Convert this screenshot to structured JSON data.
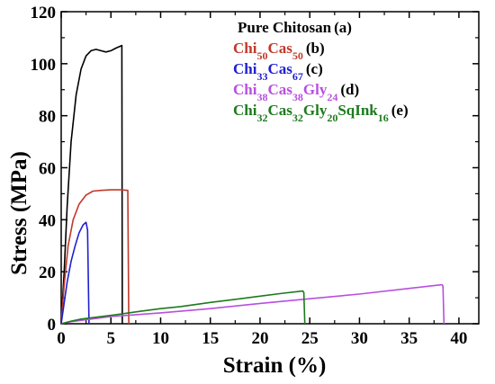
{
  "chart_data": {
    "type": "line",
    "xlabel": "Strain (%)",
    "ylabel": "Stress (MPa)",
    "xlim": [
      0,
      42
    ],
    "ylim": [
      0,
      120
    ],
    "xticks": [
      "0",
      "5",
      "10",
      "15",
      "20",
      "25",
      "30",
      "35",
      "40"
    ],
    "yticks": [
      "0",
      "20",
      "40",
      "60",
      "80",
      "100",
      "120"
    ],
    "grid": false,
    "legend_position": "top-right",
    "series": [
      {
        "name": "Pure Chitosan (a)",
        "color": "#000000",
        "legend_parts": [
          {
            "text": "Pure Chitosan",
            "sub": false
          }
        ],
        "legend_suffix": " (a)",
        "legend_colored": false,
        "points": [
          [
            0,
            0
          ],
          [
            0.3,
            20
          ],
          [
            0.6,
            45
          ],
          [
            1.0,
            70
          ],
          [
            1.5,
            88
          ],
          [
            2.0,
            98
          ],
          [
            2.5,
            103
          ],
          [
            3.0,
            105
          ],
          [
            3.5,
            105.5
          ],
          [
            4.0,
            105
          ],
          [
            4.5,
            104.5
          ],
          [
            5.0,
            105
          ],
          [
            5.5,
            106
          ],
          [
            6.1,
            107
          ],
          [
            6.15,
            0
          ]
        ]
      },
      {
        "name": "Chi50Cas50 (b)",
        "color": "#c0392b",
        "legend_parts": [
          {
            "text": "Chi",
            "sub": false
          },
          {
            "text": "50",
            "sub": true
          },
          {
            "text": "Cas",
            "sub": false
          },
          {
            "text": "50",
            "sub": true
          }
        ],
        "legend_suffix": " (b)",
        "legend_colored": true,
        "points": [
          [
            0,
            0
          ],
          [
            0.3,
            15
          ],
          [
            0.7,
            30
          ],
          [
            1.2,
            40
          ],
          [
            1.8,
            46
          ],
          [
            2.5,
            49.5
          ],
          [
            3.2,
            51
          ],
          [
            4.0,
            51.3
          ],
          [
            5.0,
            51.5
          ],
          [
            6.0,
            51.5
          ],
          [
            6.7,
            51.3
          ],
          [
            6.8,
            0
          ]
        ]
      },
      {
        "name": "Chi33Cas67 (c)",
        "color": "#1f1fd1",
        "legend_parts": [
          {
            "text": "Chi",
            "sub": false
          },
          {
            "text": "33",
            "sub": true
          },
          {
            "text": "Cas",
            "sub": false
          },
          {
            "text": "67",
            "sub": true
          }
        ],
        "legend_suffix": " (c)",
        "legend_colored": true,
        "points": [
          [
            0,
            0
          ],
          [
            0.3,
            8
          ],
          [
            0.6,
            16
          ],
          [
            1.0,
            24
          ],
          [
            1.4,
            30
          ],
          [
            1.8,
            35
          ],
          [
            2.2,
            38
          ],
          [
            2.5,
            39
          ],
          [
            2.65,
            36
          ],
          [
            2.8,
            0
          ]
        ]
      },
      {
        "name": "Chi38Cas38Gly24 (d)",
        "color": "#b84fe0",
        "legend_parts": [
          {
            "text": "Chi",
            "sub": false
          },
          {
            "text": "38",
            "sub": true
          },
          {
            "text": "Cas",
            "sub": false
          },
          {
            "text": "38",
            "sub": true
          },
          {
            "text": "Gly",
            "sub": false
          },
          {
            "text": "24",
            "sub": true
          }
        ],
        "legend_suffix": " (d)",
        "legend_colored": true,
        "points": [
          [
            0,
            0
          ],
          [
            1,
            0.8
          ],
          [
            3,
            1.8
          ],
          [
            5,
            2.8
          ],
          [
            8,
            3.6
          ],
          [
            10,
            4.2
          ],
          [
            15,
            5.8
          ],
          [
            20,
            7.8
          ],
          [
            25,
            9.6
          ],
          [
            30,
            11.4
          ],
          [
            35,
            13.6
          ],
          [
            38.3,
            15
          ],
          [
            38.4,
            14.5
          ],
          [
            38.5,
            0
          ]
        ]
      },
      {
        "name": "Chi32Cas32Gly20SqInk16 (e)",
        "color": "#1e7a1e",
        "legend_parts": [
          {
            "text": "Chi",
            "sub": false
          },
          {
            "text": "32",
            "sub": true
          },
          {
            "text": "Cas",
            "sub": false
          },
          {
            "text": "32",
            "sub": true
          },
          {
            "text": "Gly",
            "sub": false
          },
          {
            "text": "20",
            "sub": true
          },
          {
            "text": "SqInk",
            "sub": false
          },
          {
            "text": "16",
            "sub": true
          }
        ],
        "legend_suffix": " (e)",
        "legend_colored": true,
        "points": [
          [
            0,
            0
          ],
          [
            1,
            1
          ],
          [
            2,
            1.8
          ],
          [
            5,
            3.2
          ],
          [
            8,
            4.8
          ],
          [
            10,
            5.8
          ],
          [
            12,
            6.6
          ],
          [
            15,
            8.2
          ],
          [
            18,
            9.6
          ],
          [
            20,
            10.6
          ],
          [
            22,
            11.6
          ],
          [
            24.3,
            12.6
          ],
          [
            24.4,
            12
          ],
          [
            24.5,
            0
          ]
        ]
      }
    ]
  }
}
